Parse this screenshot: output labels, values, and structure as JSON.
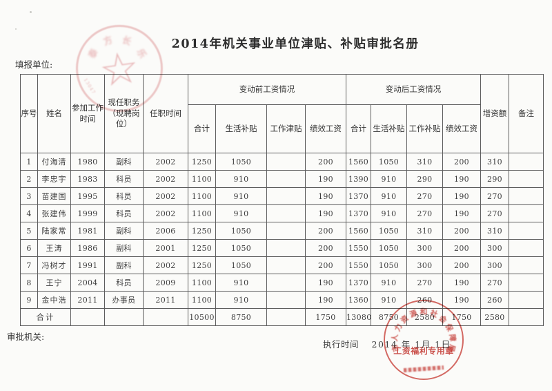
{
  "page": {
    "title": "2014年机关事业单位津贴、补贴审批名册",
    "filler_unit_label": "填报单位:",
    "approval_org_label": "审批机关:",
    "exec_time_label": "执行时间",
    "exec_time_value": "2014 年 1月 1日"
  },
  "table": {
    "headers": {
      "index": "序号",
      "name": "姓名",
      "work_start": "参加工作时间",
      "position": "现任职务（现聘岗位）",
      "tenure": "任职时间",
      "before_group": "变动前工资情况",
      "after_group": "变动后工资情况",
      "before_total": "合计",
      "before_living": "生活补贴",
      "before_work": "工作津贴",
      "before_perf": "绩效工资",
      "after_total": "合计",
      "after_living": "生活补贴",
      "after_work": "工作补贴",
      "after_perf": "绩效工资",
      "increase": "增资额",
      "remark": "备注"
    },
    "rows": [
      [
        "1",
        "付海清",
        "1980",
        "副科",
        "2002",
        "1250",
        "1050",
        "",
        "200",
        "1560",
        "1050",
        "310",
        "200",
        "310",
        ""
      ],
      [
        "2",
        "李忠宇",
        "1983",
        "科员",
        "2002",
        "1100",
        "910",
        "",
        "190",
        "1390",
        "910",
        "290",
        "190",
        "290",
        ""
      ],
      [
        "3",
        "苗建国",
        "1995",
        "科员",
        "2002",
        "1100",
        "910",
        "",
        "190",
        "1370",
        "910",
        "270",
        "190",
        "270",
        ""
      ],
      [
        "4",
        "张建伟",
        "1999",
        "科员",
        "2002",
        "1100",
        "910",
        "",
        "190",
        "1370",
        "910",
        "270",
        "190",
        "270",
        ""
      ],
      [
        "5",
        "陆家常",
        "1981",
        "副科",
        "2006",
        "1250",
        "1050",
        "",
        "200",
        "1560",
        "1050",
        "310",
        "200",
        "310",
        ""
      ],
      [
        "6",
        "王涛",
        "1986",
        "副科",
        "2001",
        "1250",
        "1050",
        "",
        "200",
        "1550",
        "1050",
        "300",
        "200",
        "300",
        ""
      ],
      [
        "7",
        "冯树才",
        "1991",
        "副科",
        "2002",
        "1250",
        "1050",
        "",
        "200",
        "1550",
        "1050",
        "300",
        "200",
        "300",
        ""
      ],
      [
        "8",
        "王宁",
        "2004",
        "科员",
        "2009",
        "1100",
        "910",
        "",
        "190",
        "1370",
        "910",
        "270",
        "190",
        "270",
        ""
      ],
      [
        "9",
        "金中浩",
        "2011",
        "办事员",
        "2011",
        "1100",
        "910",
        "",
        "190",
        "1360",
        "910",
        "260",
        "190",
        "260",
        ""
      ]
    ],
    "total_row": {
      "label": "合计",
      "cells": [
        "",
        "",
        "",
        "10500",
        "8750",
        "",
        "1750",
        "13080",
        "8750",
        "2580",
        "1750",
        "2580",
        ""
      ]
    }
  },
  "stamps": {
    "top_left": {
      "star": "☆",
      "arc_chars": "泰方长乐",
      "serial": "13047"
    },
    "bottom_right": {
      "arc_text": "市人力资源和社会保障局",
      "title_text": "工资福利专用章"
    }
  },
  "colors": {
    "stamp_red": "#c8423c",
    "stamp_pink": "#db8084",
    "ink": "#3c3c3c",
    "table_border": "#5c5c5c",
    "paper": "#fbfbf9"
  }
}
